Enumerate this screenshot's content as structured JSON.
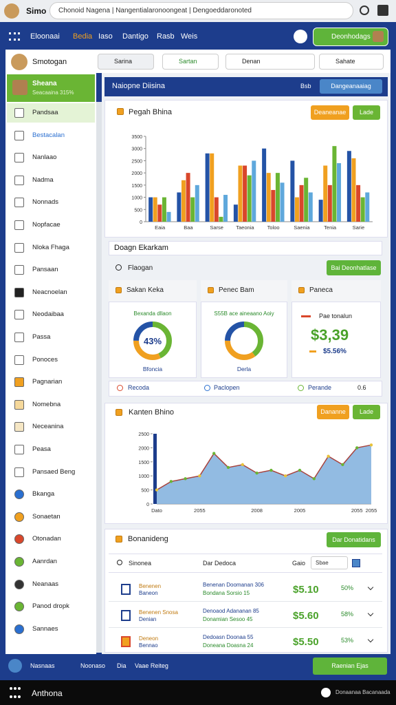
{
  "browser": {
    "tab_title": "Simo",
    "url": "Chonoid Nagena | Nangentialaronoongeat | Dengoeddaronoted"
  },
  "nav": {
    "items": [
      "Eloonaai",
      "Bedia",
      "Iaso",
      "Dantigo",
      "Rasb",
      "Weis"
    ],
    "button": "Deonhodags"
  },
  "sidebar": {
    "profile": "Smotogan",
    "group": {
      "title": "Sheana",
      "subtitle": "Seacaaina 315%"
    },
    "items": [
      "Pandsaa",
      "Bestacalan",
      "Nanlaao",
      "Nadma",
      "Nonnads",
      "Nopfacae",
      "Nloka Fhaga",
      "Pansaan",
      "Neacnoelan",
      "Neodaibaa",
      "Passa",
      "Ponoces",
      "Pagnarian",
      "Nomebna",
      "Neceanina",
      "Peasa",
      "Pansaed Beng",
      "Bkanga",
      "Sonaetan",
      "Otonadan",
      "Aanrdan",
      "Neanaas",
      "Panod dropk",
      "Sannaes"
    ]
  },
  "toolbar": {
    "select": "Sarina",
    "filter": "Sartan",
    "search": "Denan",
    "sort": "Sahate"
  },
  "header": {
    "title": "Naiopne Diisina",
    "label": "Bsb",
    "button": "Dangeanaaiag"
  },
  "bar_chart": {
    "type": "bar",
    "title": "Pegah Bhina",
    "buttons": [
      "Deaneanae",
      "Lade"
    ],
    "categories": [
      "Eaia",
      "Baa",
      "Sarse",
      "Taeonia",
      "Toloo",
      "Saenia",
      "Tenia",
      "Sarie"
    ],
    "series": [
      {
        "color": "#2453a6",
        "values": [
          1000,
          1200,
          2800,
          700,
          3000,
          2500,
          900,
          2900
        ]
      },
      {
        "color": "#f0a020",
        "values": [
          1000,
          1700,
          2800,
          2300,
          2000,
          1000,
          2300,
          2600
        ]
      },
      {
        "color": "#d9472b",
        "values": [
          700,
          2000,
          1000,
          2300,
          1300,
          1500,
          1500,
          1500
        ]
      },
      {
        "color": "#6ab534",
        "values": [
          1000,
          1000,
          200,
          1900,
          2000,
          1800,
          3100,
          1000
        ]
      },
      {
        "color": "#5fa8dc",
        "values": [
          400,
          1500,
          1100,
          2500,
          1600,
          1200,
          2400,
          1200
        ]
      }
    ],
    "ylim": [
      0,
      3500
    ],
    "yticks": [
      0,
      500,
      1000,
      1500,
      2000,
      2500,
      3000,
      3500
    ]
  },
  "section": {
    "title": "Doagn Ekarkam",
    "search": "Flaogan",
    "button": "Bai Deonhatlase"
  },
  "cards": [
    {
      "title": "Sakan Keka",
      "subtitle": "Bexanda dllaon",
      "caption": "Bfoncia",
      "donut": {
        "values": [
          43,
          32,
          25
        ],
        "colors": [
          "#6ab534",
          "#f0a020",
          "#2453a6"
        ],
        "value_labels": [
          "43%",
          null,
          null
        ]
      }
    },
    {
      "title": "Penec Bam",
      "subtitle": "S55B ace aineaano Aoiy",
      "caption": "Derla",
      "donut": {
        "values": [
          40,
          35,
          25
        ],
        "colors": [
          "#6ab534",
          "#f0a020",
          "#2453a6"
        ],
        "value_labels": [
          null,
          null,
          null
        ]
      }
    },
    {
      "title": "Paneca",
      "label": "Pae tonalun",
      "amount": "$3,39",
      "change": "$5.56%"
    }
  ],
  "links": [
    "Recoda",
    "Paclopen",
    "Perande",
    "0.6"
  ],
  "area_chart": {
    "type": "area",
    "title": "Kanten Bhino",
    "buttons": [
      "Dananne",
      "Lade"
    ],
    "categories": [
      "Dato",
      null,
      null,
      "2055",
      null,
      null,
      null,
      "2008",
      null,
      null,
      "2005",
      null,
      null,
      null,
      "2055",
      "2055"
    ],
    "values": [
      500,
      800,
      900,
      1000,
      1800,
      1300,
      1400,
      1100,
      1200,
      1000,
      1200,
      900,
      1700,
      1400,
      2000,
      2100
    ],
    "color": "#86b4df",
    "line_color": "#a8423c",
    "ylim": [
      0,
      2500
    ],
    "yticks": [
      0,
      500,
      1000,
      1500,
      2000,
      2500
    ]
  },
  "table": {
    "title": "Bonanideng",
    "button": "Dar Donatidans",
    "header": [
      "Sinonea",
      "Dar Dedoca",
      "Gaio"
    ],
    "search": "Sbae",
    "rows": [
      {
        "name": "Benenen",
        "sub": "Baneon",
        "detail": "Benenan Doomanan 306",
        "detail2": "Bondana Sorsio 15",
        "price": "$5.10",
        "change": "50%"
      },
      {
        "name": "Benenen Snosa",
        "sub": "Denian",
        "detail": "Denoaod Adananan 85",
        "detail2": "Donamian Sesoo 45",
        "price": "$5.60",
        "change": "58%"
      },
      {
        "name": "Deneon",
        "sub": "Bennao",
        "detail": "Dedoasn Doonaa 55",
        "detail2": "Doneana Doasna 24",
        "price": "$5.50",
        "change": "53%"
      }
    ]
  },
  "footer": {
    "items": [
      "Nasnaas",
      "Noonaso",
      "Dia",
      "Vaae Reiteg"
    ],
    "button": "Raenian Ejas"
  },
  "taskbar": {
    "title": "Anthona",
    "status": "Donaanaa Bacanaada"
  }
}
